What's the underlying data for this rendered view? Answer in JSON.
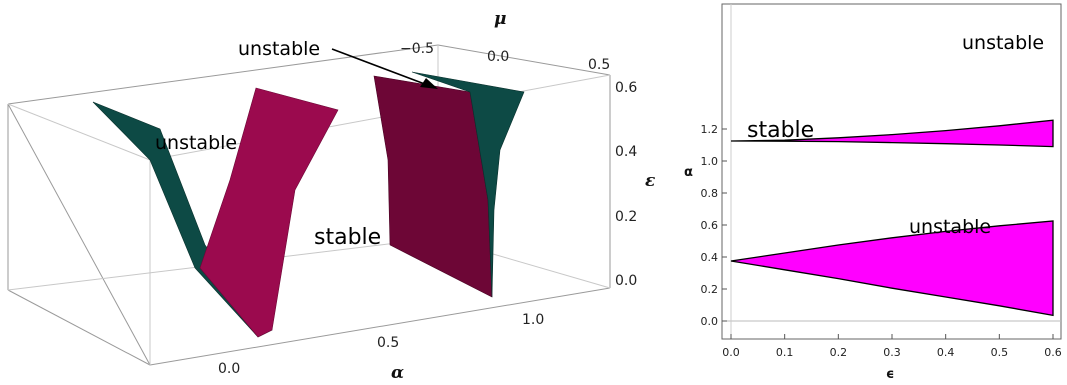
{
  "chart_data": [
    {
      "type": "surface3d",
      "title": "",
      "axes": {
        "alpha": {
          "label": "α",
          "ticks": [
            "0.0",
            "0.5",
            "1.0"
          ]
        },
        "mu": {
          "label": "μ",
          "ticks": [
            "−0.5",
            "0.0",
            "0.5"
          ]
        },
        "epsilon": {
          "label": "ε",
          "ticks": [
            "0.0",
            "0.2",
            "0.4",
            "0.6"
          ]
        }
      },
      "annotations": {
        "unstable_arrow": "unstable",
        "unstable_left": "unstable",
        "stable": "stable"
      },
      "surface_colors": {
        "dark_teal": "#0d4a45",
        "crimson": "#9b0a4e",
        "maroon": "#6d0636"
      }
    },
    {
      "type": "area",
      "title": "",
      "xlabel": "ϵ",
      "ylabel": "α",
      "xlim": [
        0,
        0.6
      ],
      "ylim": [
        0,
        1.3
      ],
      "x_ticks": [
        "0.0",
        "0.1",
        "0.2",
        "0.3",
        "0.4",
        "0.5",
        "0.6"
      ],
      "y_ticks": [
        "0.0",
        "0.2",
        "0.4",
        "0.6",
        "0.8",
        "1.0",
        "1.2"
      ],
      "series": [
        {
          "x": [
            0,
            0.1,
            0.2,
            0.3,
            0.4,
            0.5,
            0.6
          ],
          "lower": [
            1.125,
            1.124,
            1.121,
            1.115,
            1.108,
            1.1,
            1.09
          ],
          "upper": [
            1.125,
            1.13,
            1.145,
            1.165,
            1.19,
            1.22,
            1.255
          ]
        },
        {
          "x": [
            0,
            0.1,
            0.2,
            0.3,
            0.4,
            0.5,
            0.6
          ],
          "lower": [
            0.375,
            0.32,
            0.265,
            0.205,
            0.15,
            0.095,
            0.035
          ],
          "upper": [
            0.375,
            0.425,
            0.475,
            0.52,
            0.56,
            0.595,
            0.625
          ]
        }
      ],
      "fill_color": "#ff00ff",
      "annotations": {
        "stable": "stable",
        "unstable_top": "unstable",
        "unstable_bottom": "unstable"
      }
    }
  ]
}
